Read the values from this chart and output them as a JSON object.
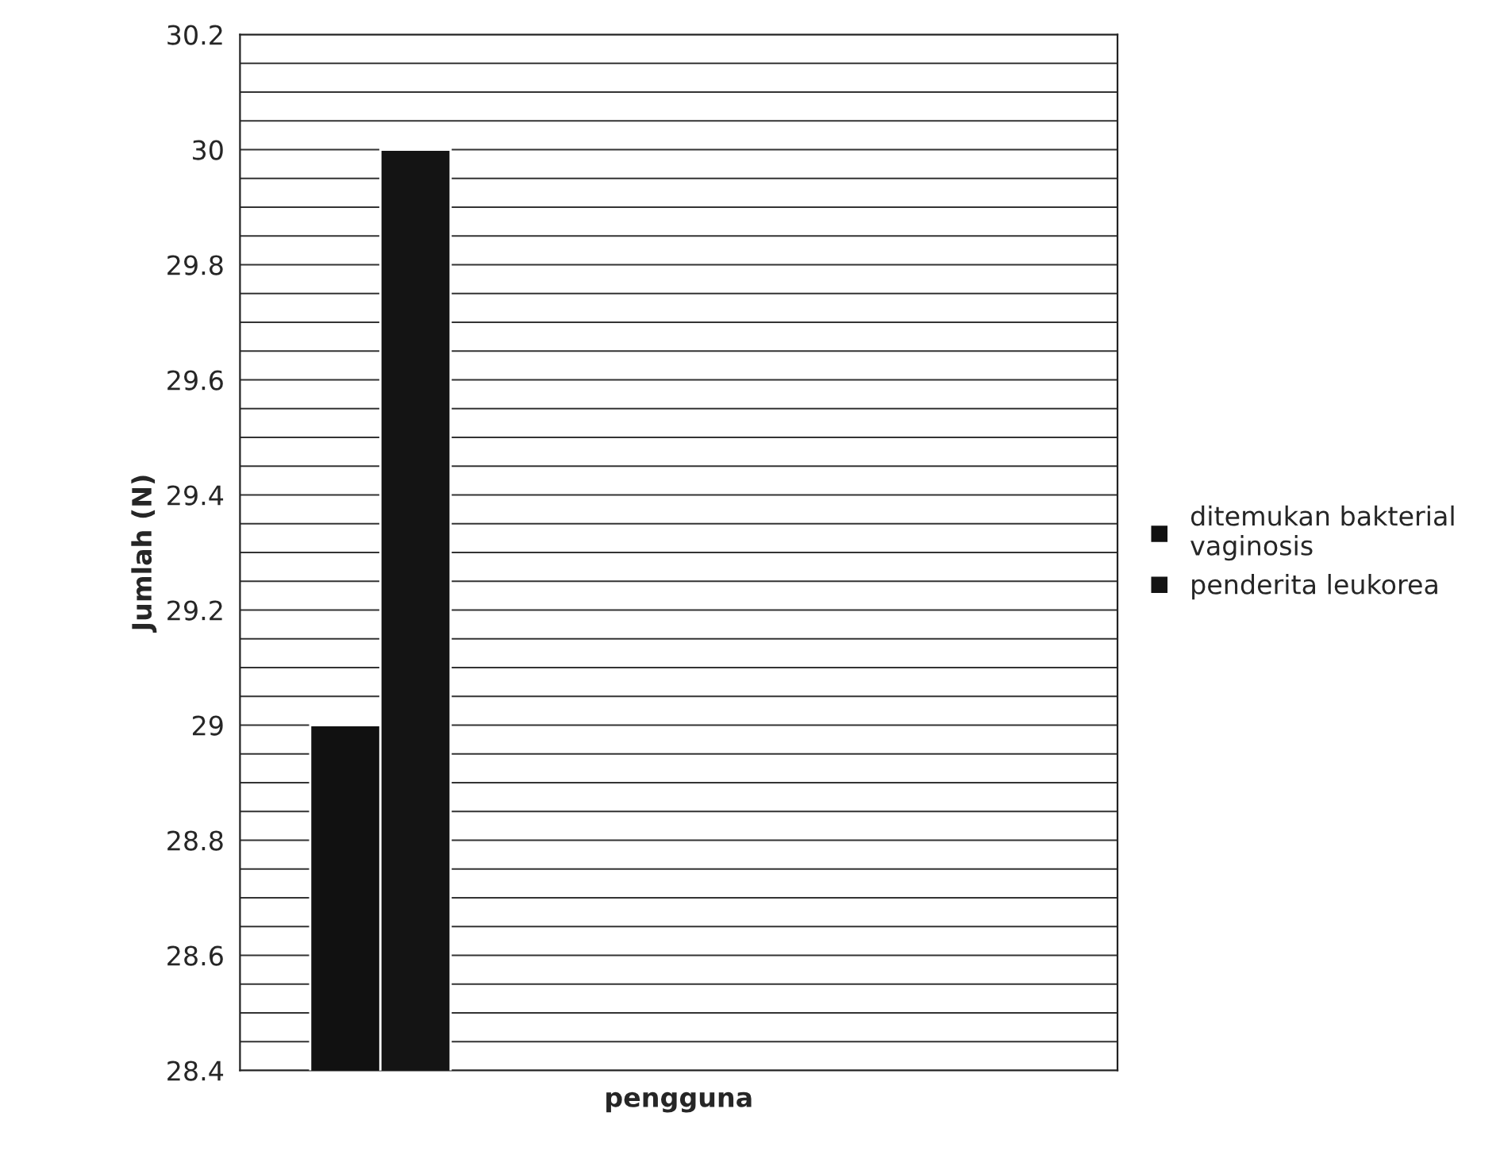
{
  "chart_data": {
    "type": "bar",
    "ylabel": "Jumlah (N)",
    "xlabel": "pengguna",
    "categories": [
      null
    ],
    "series": [
      {
        "name": "ditemukan bakterial vaginosis",
        "color": "#111111",
        "values": [
          29
        ]
      },
      {
        "name": "penderita leukorea",
        "color": "#141414",
        "values": [
          30
        ]
      }
    ],
    "ylim": [
      28.4,
      30.2
    ],
    "yticks": [
      28.4,
      28.6,
      28.8,
      29,
      29.2,
      29.4,
      29.6,
      29.8,
      30,
      30.2
    ],
    "grid": "y",
    "legend": "right"
  }
}
